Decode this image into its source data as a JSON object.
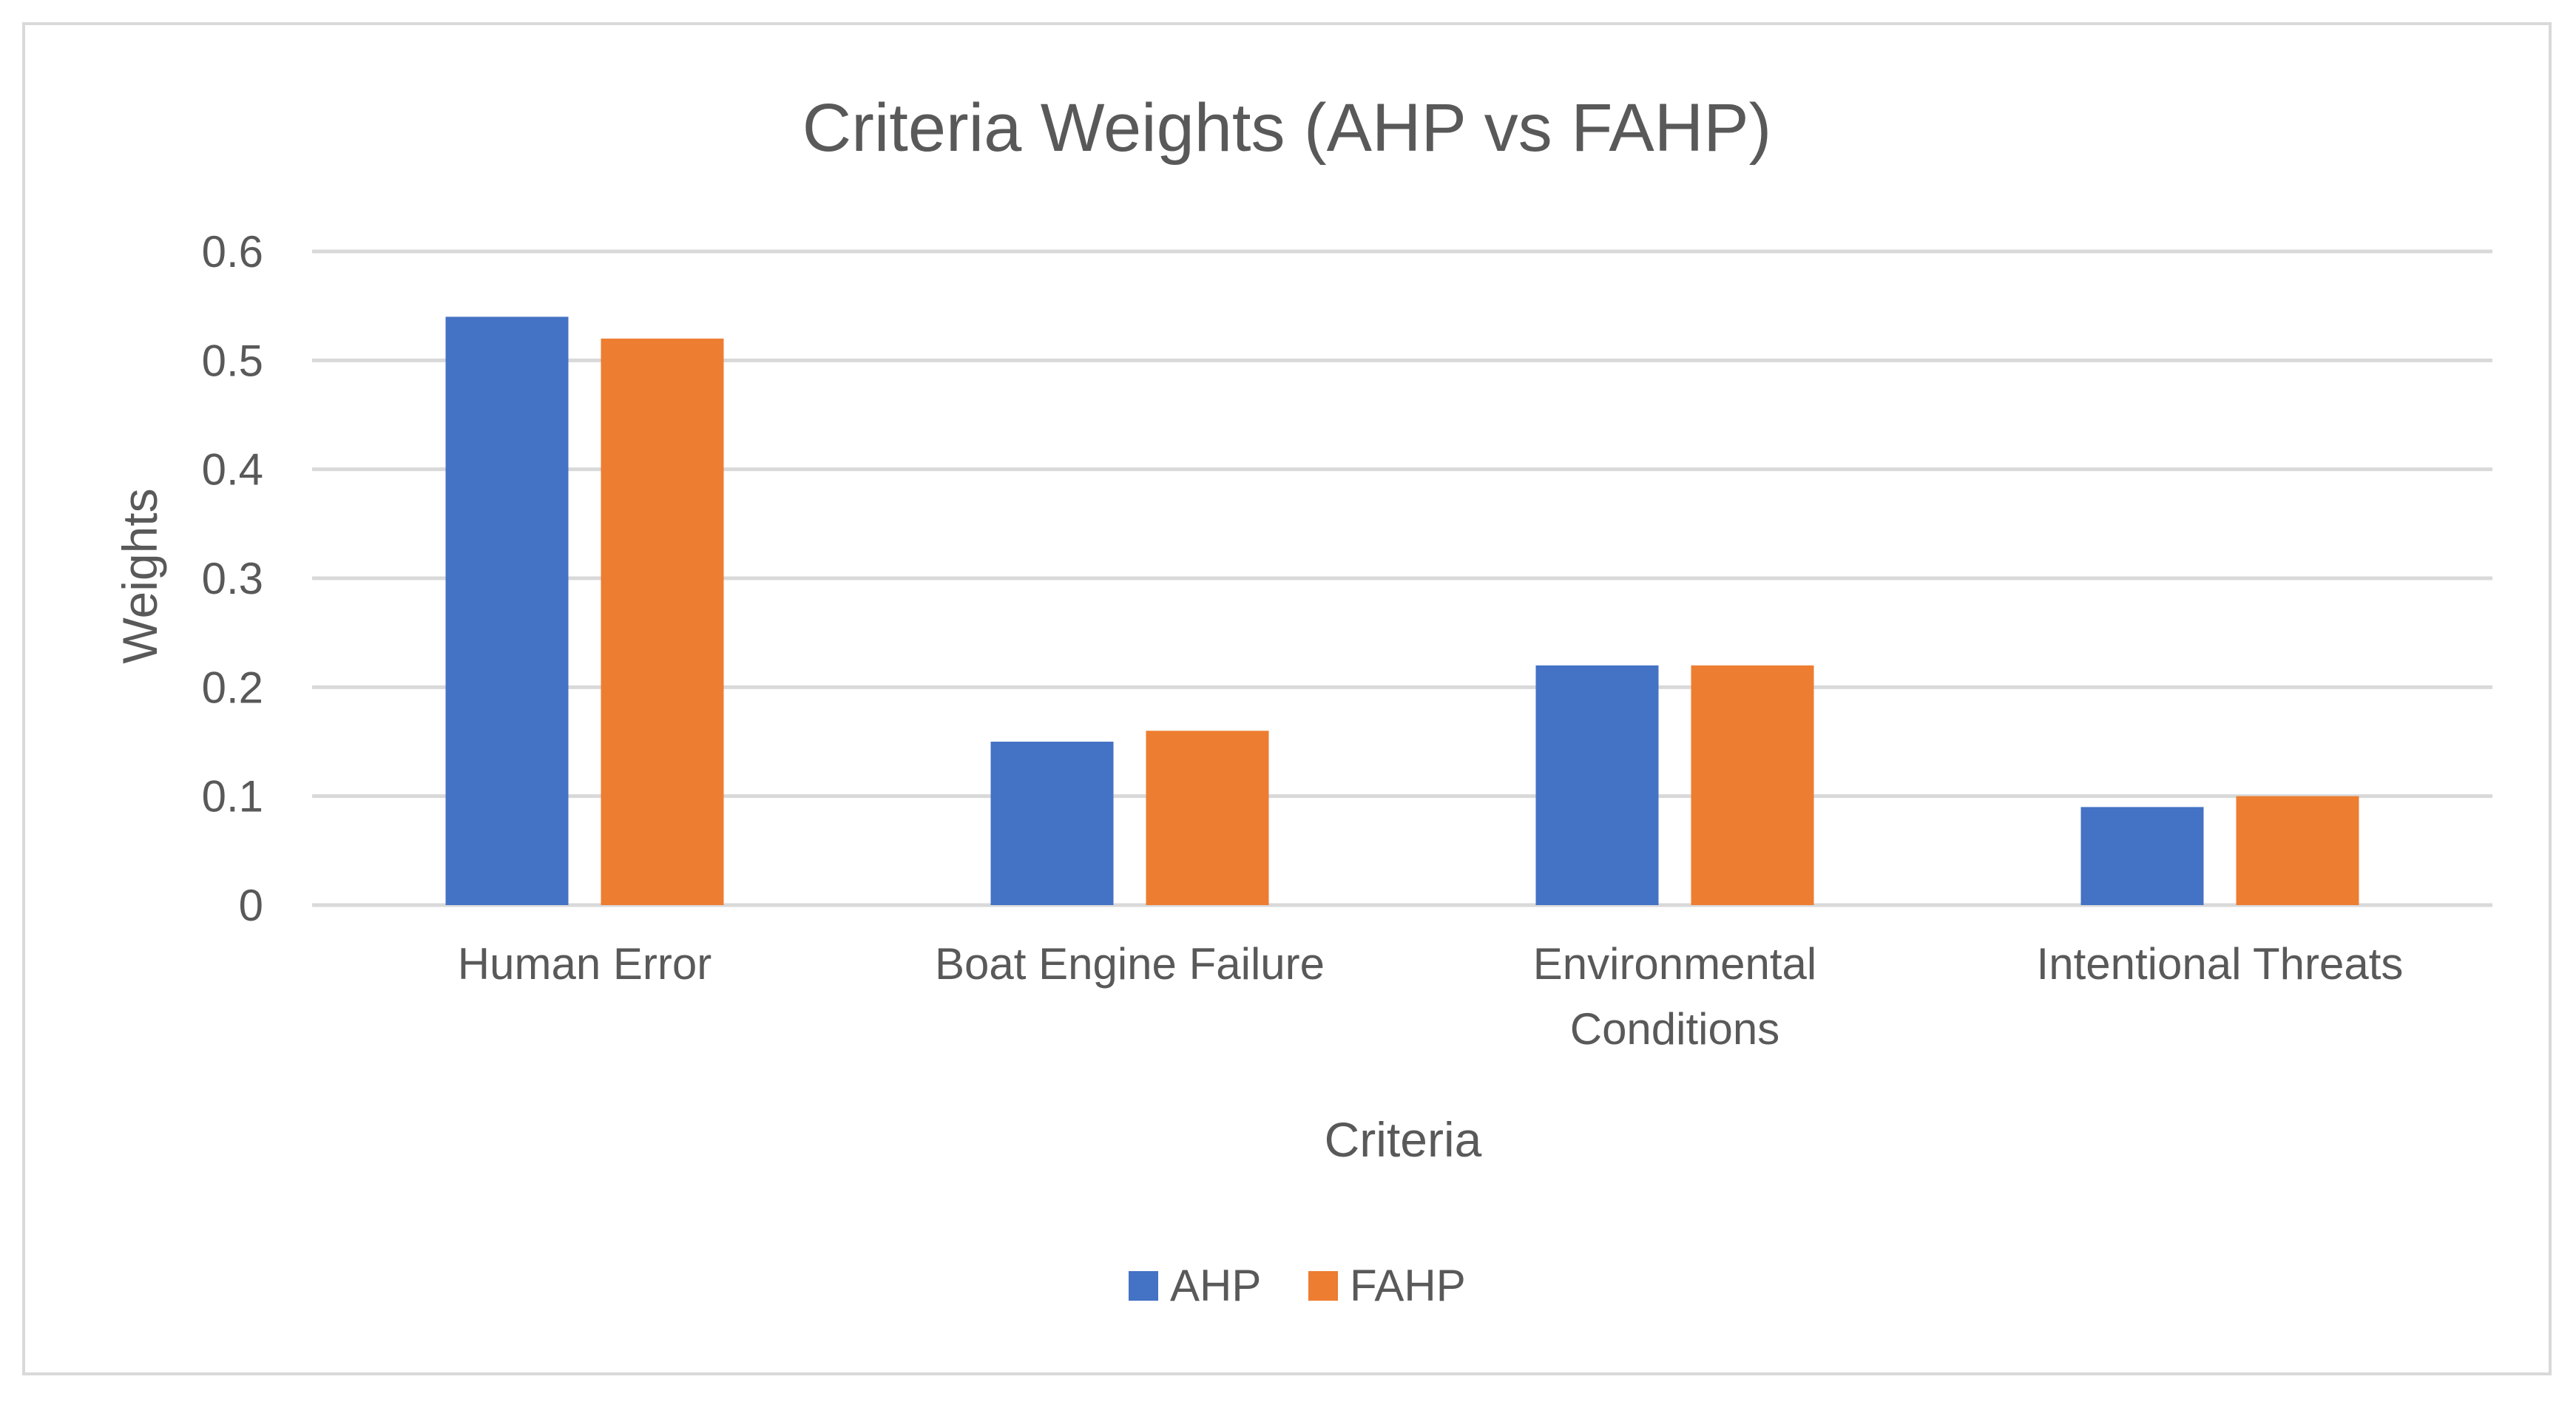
{
  "chart_data": {
    "type": "bar",
    "title": "Criteria Weights (AHP vs FAHP)",
    "xlabel": "Criteria",
    "ylabel": "Weights",
    "categories": [
      [
        "Human Error"
      ],
      [
        "Boat Engine Failure"
      ],
      [
        "Environmental",
        "Conditions"
      ],
      [
        "Intentional Threats"
      ]
    ],
    "series": [
      {
        "name": "AHP",
        "color": "#4472C4",
        "values": [
          0.54,
          0.15,
          0.22,
          0.09
        ]
      },
      {
        "name": "FAHP",
        "color": "#ED7D31",
        "values": [
          0.52,
          0.16,
          0.22,
          0.1
        ]
      }
    ],
    "ylim": [
      0,
      0.6
    ],
    "yticks": [
      "0",
      "0.1",
      "0.2",
      "0.3",
      "0.4",
      "0.5",
      "0.6"
    ],
    "grid": true,
    "legend_position": "bottom",
    "colors": {
      "grid": "#d9d9d9",
      "axis": "#d9d9d9",
      "text": "#595959",
      "border": "#d9d9d9"
    }
  }
}
